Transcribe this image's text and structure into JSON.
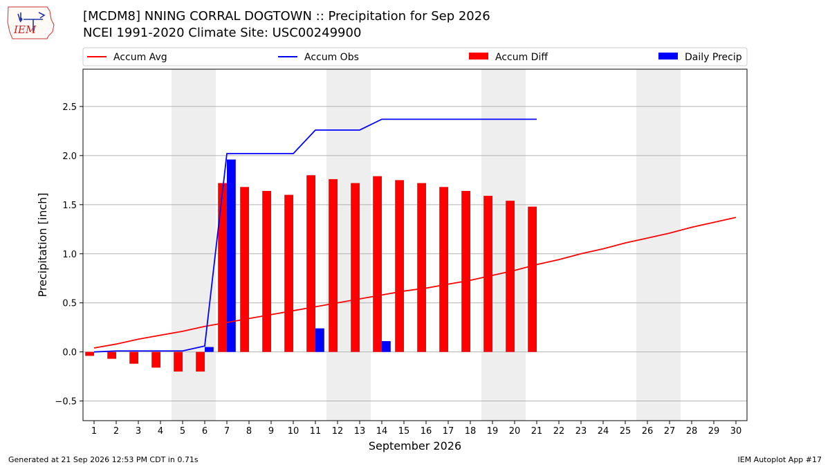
{
  "header": {
    "title_line1": "[MCDM8] NNING CORRAL DOGTOWN :: Precipitation for Sep 2026",
    "title_line2": "NCEI 1991-2020 Climate Site: USC00249900",
    "logo_text": "IEM"
  },
  "footer": {
    "left": "Generated at 21 Sep 2026 12:53 PM CDT in 0.71s",
    "right": "IEM Autoplot App #17"
  },
  "colors": {
    "avg": "#ff0000",
    "obs": "#0000ff",
    "diff": "#ff0000",
    "daily": "#0000ff",
    "weekend": "#eeeeee",
    "grid": "#b0b0b0"
  },
  "chart_data": {
    "type": "bar",
    "xlabel": "September 2026",
    "ylabel": "Precipitation [inch]",
    "xlim": [
      0.5,
      30.5
    ],
    "ylim": [
      -0.7,
      2.88
    ],
    "yticks": [
      -0.5,
      0.0,
      0.5,
      1.0,
      1.5,
      2.0,
      2.5
    ],
    "ytick_labels": [
      "−0.5",
      "0.0",
      "0.5",
      "1.0",
      "1.5",
      "2.0",
      "2.5"
    ],
    "grid": "horizontal",
    "legend_placement": "top",
    "weekend_days": [
      5,
      6,
      12,
      13,
      19,
      20,
      26,
      27
    ],
    "days": [
      1,
      2,
      3,
      4,
      5,
      6,
      7,
      8,
      9,
      10,
      11,
      12,
      13,
      14,
      15,
      16,
      17,
      18,
      19,
      20,
      21,
      22,
      23,
      24,
      25,
      26,
      27,
      28,
      29,
      30
    ],
    "series": [
      {
        "name": "Accum Avg",
        "kind": "line",
        "values": [
          0.04,
          0.08,
          0.13,
          0.17,
          0.21,
          0.26,
          0.3,
          0.34,
          0.38,
          0.42,
          0.46,
          0.5,
          0.54,
          0.58,
          0.62,
          0.65,
          0.69,
          0.73,
          0.78,
          0.83,
          0.89,
          0.94,
          1.0,
          1.05,
          1.11,
          1.16,
          1.21,
          1.27,
          1.32,
          1.37
        ]
      },
      {
        "name": "Accum Obs",
        "kind": "line",
        "values": [
          0.0,
          0.01,
          0.01,
          0.01,
          0.01,
          0.06,
          2.02,
          2.02,
          2.02,
          2.02,
          2.26,
          2.26,
          2.26,
          2.37,
          2.37,
          2.37,
          2.37,
          2.37,
          2.37,
          2.37,
          2.37
        ]
      },
      {
        "name": "Accum Diff",
        "kind": "bar",
        "values": [
          -0.04,
          -0.07,
          -0.12,
          -0.16,
          -0.2,
          -0.2,
          1.72,
          1.68,
          1.64,
          1.6,
          1.8,
          1.76,
          1.72,
          1.79,
          1.75,
          1.72,
          1.68,
          1.64,
          1.59,
          1.54,
          1.48
        ]
      },
      {
        "name": "Daily Precip",
        "kind": "bar",
        "values": [
          0,
          0,
          0,
          0,
          0,
          0.05,
          1.96,
          0,
          0,
          0,
          0.24,
          0,
          0,
          0.11,
          0,
          0,
          0,
          0,
          0,
          0,
          0
        ]
      }
    ]
  }
}
